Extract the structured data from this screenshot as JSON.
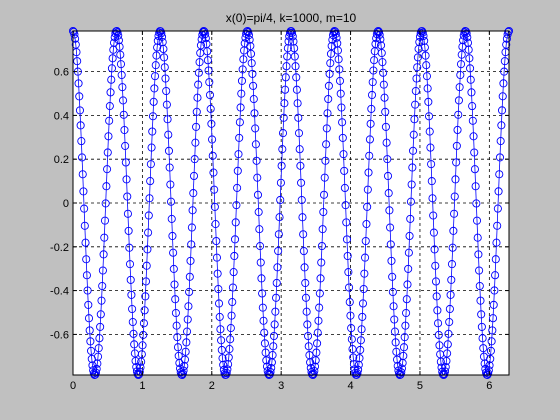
{
  "chart_data": {
    "type": "scatter",
    "title": "x(0)=pi/4, k=1000, m=10",
    "xlabel": "",
    "ylabel": "",
    "xlim": [
      0,
      6.2832
    ],
    "ylim": [
      -0.7854,
      0.7854
    ],
    "x_ticks": [
      "0",
      "1",
      "2",
      "3",
      "4",
      "5",
      "6"
    ],
    "y_ticks": [
      "-0.6",
      "-0.4",
      "-0.2",
      "0",
      "0.2",
      "0.4",
      "0.6"
    ],
    "grid": true,
    "grid_style": "dashed",
    "marker": "circle",
    "line_style": "solid",
    "series_color": "#0000ff",
    "series": [
      {
        "function": "x(t) = (pi/4)·cos(sqrt(k/m)·t), k=1000, m=10",
        "t_start": 0,
        "t_end": 6.2832,
        "amplitude": 0.7854,
        "angular_frequency": 10,
        "num_points": 628
      }
    ]
  }
}
